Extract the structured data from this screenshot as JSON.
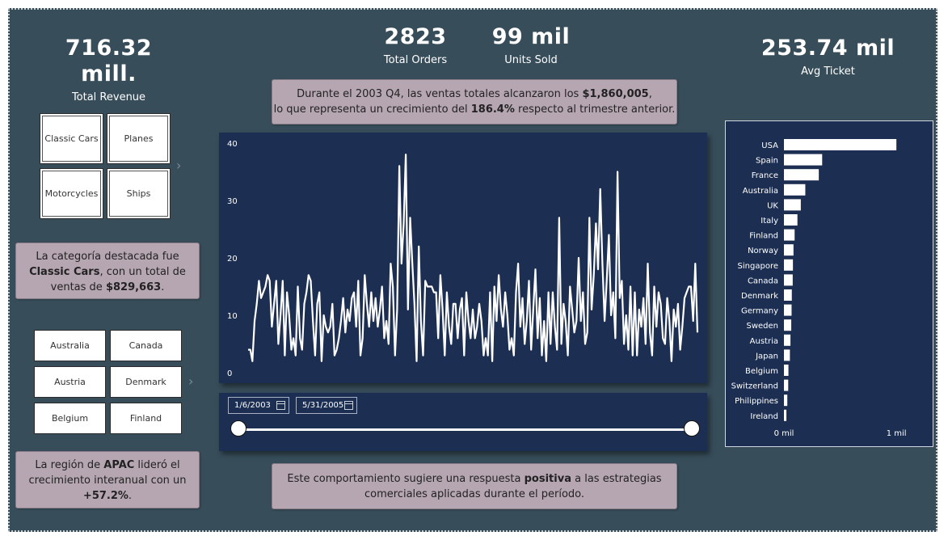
{
  "kpis": {
    "total_revenue": {
      "value": "716.32 mill.",
      "label": "Total Revenue"
    },
    "total_orders": {
      "value": "2823",
      "label": "Total Orders"
    },
    "units_sold": {
      "value": "99 mil",
      "label": "Units Sold"
    },
    "avg_ticket": {
      "value": "253.74 mil",
      "label": "Avg Ticket"
    }
  },
  "callouts": {
    "top": {
      "l1_pre": "Durante el 2003 Q4, las ventas totales alcanzaron los ",
      "l1_bold": "$1,860,005",
      "l1_post": ",",
      "l2_pre": "lo que representa un crecimiento del ",
      "l2_bold": "186.4%",
      "l2_post": " respecto al trimestre anterior."
    },
    "category": {
      "l1": "La categoría destacada fue",
      "l2_bold": "Classic Cars",
      "l2_post": ", con un total de",
      "l3_pre": "ventas de ",
      "l3_bold": "$829,663",
      "l3_post": "."
    },
    "region": {
      "l1_pre": "La región de ",
      "l1_bold": "APAC",
      "l1_post": " lideró el",
      "l2": "crecimiento interanual con un",
      "l3_bold": "+57.2%",
      "l3_post": "."
    },
    "bottom": {
      "l1_pre": "Este comportamiento sugiere una respuesta ",
      "l1_bold": "positiva",
      "l1_post": " a las estrategias",
      "l2": "comerciales aplicadas durante el período."
    }
  },
  "category_slicer": [
    "Classic Cars",
    "Planes",
    "Motorcycles",
    "Ships"
  ],
  "country_slicer": [
    "Australia",
    "Canada",
    "Austria",
    "Denmark",
    "Belgium",
    "Finland"
  ],
  "date_slicer": {
    "start": "1/6/2003",
    "end": "5/31/2005",
    "range_selected_fraction": [
      0.0,
      1.0
    ]
  },
  "icons": {
    "chevron": "chevron-right-icon",
    "calendar": "calendar-icon"
  },
  "colors": {
    "background": "#374d5a",
    "panel": "#1c2e51",
    "callout": "#b6a6b2",
    "line": "#ffffff"
  },
  "chart_data": [
    {
      "type": "line",
      "title": "",
      "xlabel": "",
      "ylabel": "",
      "ylim": [
        0,
        40
      ],
      "y_ticks": [
        0,
        10,
        20,
        30,
        40
      ],
      "grid": false,
      "x_range": [
        "1/6/2003",
        "5/31/2005"
      ],
      "series": [
        {
          "values": [
            4,
            4,
            2,
            9,
            12,
            16,
            13,
            14,
            15,
            17,
            16,
            8,
            12,
            16,
            5,
            10,
            16,
            3,
            14,
            10,
            4,
            6,
            3,
            15,
            6,
            4,
            12,
            14,
            17,
            16,
            9,
            3,
            12,
            14,
            2,
            10,
            8,
            7,
            8,
            12,
            3,
            4,
            6,
            9,
            13,
            7,
            11,
            9,
            13,
            14,
            8,
            16,
            3,
            6,
            17,
            12,
            8,
            14,
            9,
            13,
            8,
            11,
            15,
            6,
            9,
            5,
            19,
            15,
            3,
            11,
            36,
            19,
            26,
            38,
            11,
            27,
            19,
            12,
            2,
            22,
            9,
            3,
            16,
            15,
            15,
            15,
            14,
            14,
            6,
            17,
            11,
            3,
            14,
            8,
            5,
            12,
            12,
            6,
            11,
            13,
            3,
            14,
            9,
            6,
            11,
            6,
            8,
            12,
            9,
            3,
            6,
            3,
            14,
            2,
            15,
            9,
            17,
            11,
            8,
            14,
            10,
            4,
            6,
            3,
            14,
            19,
            8,
            13,
            5,
            9,
            16,
            4,
            11,
            18,
            6,
            13,
            3,
            9,
            2,
            14,
            5,
            14,
            8,
            4,
            27,
            5,
            12,
            9,
            3,
            15,
            11,
            7,
            9,
            20,
            9,
            14,
            5,
            7,
            27,
            11,
            17,
            26,
            18,
            32,
            19,
            9,
            16,
            24,
            10,
            14,
            6,
            35,
            13,
            16,
            5,
            10,
            4,
            15,
            3,
            14,
            3,
            11,
            8,
            13,
            5,
            19,
            7,
            3,
            15,
            8,
            14,
            12,
            6,
            5,
            13,
            9,
            2,
            11,
            8,
            12,
            4,
            8,
            13,
            14,
            15,
            15,
            9,
            19,
            7
          ]
        }
      ]
    },
    {
      "type": "bar",
      "orientation": "horizontal",
      "title": "",
      "xlabel": "",
      "ylabel": "",
      "xlim": [
        0,
        1150000
      ],
      "x_tick_labels": [
        "0 mil",
        "1 mil"
      ],
      "categories": [
        "USA",
        "Spain",
        "France",
        "Australia",
        "UK",
        "Italy",
        "Finland",
        "Norway",
        "Singapore",
        "Canada",
        "Denmark",
        "Germany",
        "Sweden",
        "Austria",
        "Japan",
        "Belgium",
        "Switzerland",
        "Philippines",
        "Ireland"
      ],
      "values": [
        1000000,
        340000,
        310000,
        190000,
        150000,
        120000,
        95000,
        85000,
        80000,
        78000,
        70000,
        68000,
        65000,
        58000,
        53000,
        40000,
        38000,
        30000,
        22000
      ]
    }
  ]
}
